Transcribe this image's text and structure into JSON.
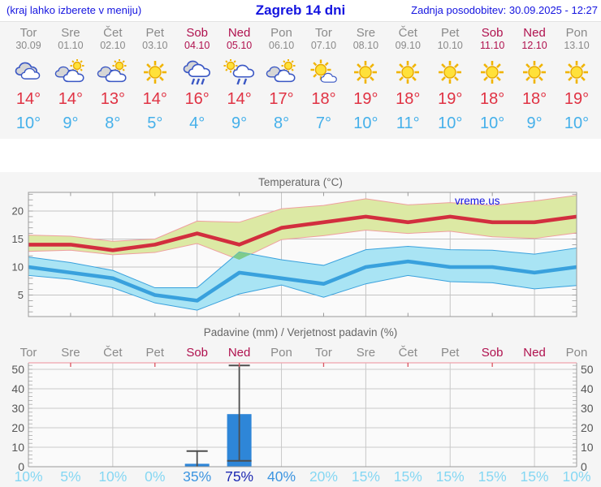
{
  "header": {
    "left_note": "(kraj lahko izberete v meniju)",
    "title": "Zagreb 14 dni",
    "updated": "Zadnja posodobitev: 30.09.2025 - 12:27"
  },
  "watermark": "vreme.us",
  "colors": {
    "link_blue": "#1414e0",
    "day_gray": "#8a8a8a",
    "weekend_red": "#b0124f",
    "tmax_red": "#e03243",
    "tmin_blue": "#45b0ea",
    "prob_low": "#85d7f3",
    "prob_mid": "#3d95e0",
    "prob_high": "#1e2ab2"
  },
  "forecast": {
    "days": [
      {
        "dow": "Tor",
        "date": "30.09",
        "weekend": false,
        "icon": "cloudy",
        "max_label": "14°",
        "min_label": "10°",
        "prob_label": "10%"
      },
      {
        "dow": "Sre",
        "date": "01.10",
        "weekend": false,
        "icon": "partly-cloudy",
        "max_label": "14°",
        "min_label": "9°",
        "prob_label": "5%"
      },
      {
        "dow": "Čet",
        "date": "02.10",
        "weekend": false,
        "icon": "partly-cloudy",
        "max_label": "13°",
        "min_label": "8°",
        "prob_label": "10%"
      },
      {
        "dow": "Pet",
        "date": "03.10",
        "weekend": false,
        "icon": "sunny",
        "max_label": "14°",
        "min_label": "5°",
        "prob_label": "0%"
      },
      {
        "dow": "Sob",
        "date": "04.10",
        "weekend": true,
        "icon": "rain",
        "max_label": "16°",
        "min_label": "4°",
        "prob_label": "35%"
      },
      {
        "dow": "Ned",
        "date": "05.10",
        "weekend": true,
        "icon": "sun-rain",
        "max_label": "14°",
        "min_label": "9°",
        "prob_label": "75%"
      },
      {
        "dow": "Pon",
        "date": "06.10",
        "weekend": false,
        "icon": "partly-cloudy",
        "max_label": "17°",
        "min_label": "8°",
        "prob_label": "40%"
      },
      {
        "dow": "Tor",
        "date": "07.10",
        "weekend": false,
        "icon": "mostly-sunny",
        "max_label": "18°",
        "min_label": "7°",
        "prob_label": "20%"
      },
      {
        "dow": "Sre",
        "date": "08.10",
        "weekend": false,
        "icon": "sunny",
        "max_label": "19°",
        "min_label": "10°",
        "prob_label": "15%"
      },
      {
        "dow": "Čet",
        "date": "09.10",
        "weekend": false,
        "icon": "sunny",
        "max_label": "18°",
        "min_label": "11°",
        "prob_label": "15%"
      },
      {
        "dow": "Pet",
        "date": "10.10",
        "weekend": false,
        "icon": "sunny",
        "max_label": "19°",
        "min_label": "10°",
        "prob_label": "15%"
      },
      {
        "dow": "Sob",
        "date": "11.10",
        "weekend": true,
        "icon": "sunny",
        "max_label": "18°",
        "min_label": "10°",
        "prob_label": "15%"
      },
      {
        "dow": "Ned",
        "date": "12.10",
        "weekend": true,
        "icon": "sunny",
        "max_label": "18°",
        "min_label": "9°",
        "prob_label": "15%"
      },
      {
        "dow": "Pon",
        "date": "13.10",
        "weekend": false,
        "icon": "sunny",
        "max_label": "19°",
        "min_label": "10°",
        "prob_label": "10%"
      }
    ]
  },
  "chart_data": [
    {
      "type": "line",
      "title": "Temperatura (°C)",
      "categories": [
        "Tor 30.09",
        "Sre 01.10",
        "Čet 02.10",
        "Pet 03.10",
        "Sob 04.10",
        "Ned 05.10",
        "Pon 06.10",
        "Tor 07.10",
        "Sre 08.10",
        "Čet 09.10",
        "Pet 10.10",
        "Sob 11.10",
        "Ned 12.10",
        "Pon 13.10"
      ],
      "ylim": [
        1.2,
        23.3
      ],
      "yticks": [
        5,
        10,
        15,
        20
      ],
      "grid": true,
      "series": [
        {
          "name": "max-temperature",
          "color": "#d22e3e",
          "values": [
            14,
            14,
            13,
            14,
            16,
            14,
            17,
            18,
            19,
            18,
            19,
            18,
            18,
            19
          ]
        },
        {
          "name": "min-temperature",
          "color": "#39a1dd",
          "values": [
            10,
            9,
            8,
            5,
            4,
            9,
            8,
            7,
            10,
            11,
            10,
            10,
            9,
            10
          ]
        }
      ],
      "bands": [
        {
          "name": "max-range",
          "fill": "#dce9a4",
          "edge": "#ef9f9f",
          "upper": [
            15.7,
            15.5,
            14.6,
            15.0,
            18.2,
            18.0,
            20.4,
            21.0,
            22.2,
            21.1,
            21.5,
            21.0,
            21.8,
            22.8
          ],
          "lower": [
            12.8,
            13.0,
            12.2,
            12.6,
            14.2,
            11.3,
            14.9,
            15.6,
            16.6,
            16.0,
            16.4,
            15.4,
            15.1,
            16.1
          ]
        },
        {
          "name": "min-range",
          "fill": "#a9e4f4",
          "edge": "#39a1dd",
          "upper": [
            11.8,
            10.8,
            9.4,
            6.3,
            6.3,
            12.7,
            11.3,
            10.3,
            13.1,
            13.7,
            13.1,
            13.0,
            12.3,
            13.4
          ],
          "lower": [
            8.5,
            7.8,
            6.3,
            3.6,
            2.3,
            5.2,
            6.8,
            4.6,
            7.0,
            8.5,
            7.4,
            7.2,
            6.1,
            6.7
          ]
        }
      ],
      "band_overlap_fill": "#7ecb8b"
    },
    {
      "type": "bar",
      "title": "Padavine (mm) / Verjetnost padavin (%)",
      "categories": [
        "Tor",
        "Sre",
        "Čet",
        "Pet",
        "Sob",
        "Ned",
        "Pon",
        "Tor",
        "Sre",
        "Čet",
        "Pet",
        "Sob",
        "Ned",
        "Pon"
      ],
      "ylabel_left": "mm",
      "ylabel_right": "mm",
      "ylim": [
        0,
        50
      ],
      "yticks": [
        0,
        10,
        20,
        30,
        40,
        50
      ],
      "grid": true,
      "bar_color": "#2e86d8",
      "values": [
        0,
        0,
        0,
        0,
        1.5,
        27,
        0,
        0,
        0,
        0,
        0,
        0,
        0,
        0
      ],
      "whiskers": [
        null,
        null,
        null,
        null,
        {
          "low": 0,
          "high": 8
        },
        {
          "low": 3,
          "high": 52
        },
        null,
        null,
        null,
        null,
        null,
        null,
        null,
        null
      ],
      "probabilities_percent": [
        10,
        5,
        10,
        0,
        35,
        75,
        40,
        20,
        15,
        15,
        15,
        15,
        15,
        10
      ]
    }
  ]
}
